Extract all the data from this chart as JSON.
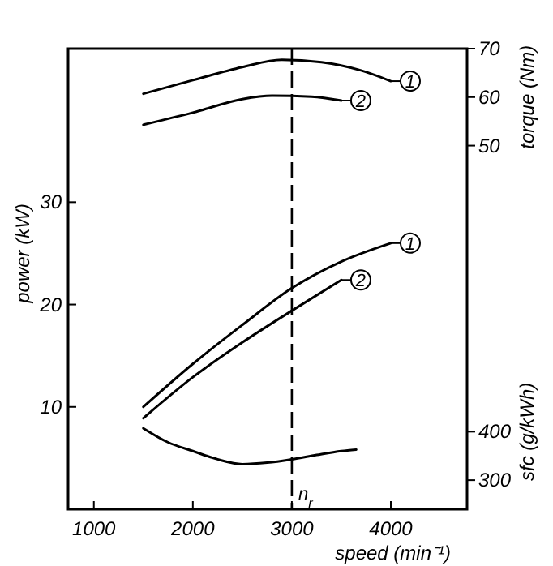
{
  "chart_data": {
    "type": "line",
    "xlabel": "speed (min⁻¹)",
    "ylabel": "power (kW)",
    "y2label": "torque (Nm)",
    "y3label": "sfc (g/kWh)",
    "xlim": [
      740,
      4770
    ],
    "xticks": [
      1000,
      2000,
      3000,
      4000
    ],
    "ylim": [
      0,
      45
    ],
    "yticks": [
      10,
      20,
      30
    ],
    "y2lim": [
      -25,
      70
    ],
    "y2ticks": [
      50,
      60,
      70
    ],
    "y3lim": [
      240,
      1190
    ],
    "y3ticks": [
      300,
      400
    ],
    "grid": false,
    "legend": "right",
    "marker": "none",
    "line_style": "solid",
    "ref_lines": [
      {
        "axis": "x",
        "value": 3000,
        "label": "n$_{r}$",
        "line_style": "dashed",
        "color": "#000000"
      }
    ],
    "series": [
      {
        "name": "1",
        "color": "#000000",
        "axis": "y2",
        "x": [
          1500,
          2000,
          2500,
          2900,
          3300,
          3700,
          4000
        ],
        "values": [
          60.7,
          63.5,
          66.2,
          67.7,
          67.2,
          65.5,
          63.3
        ]
      },
      {
        "name": "2",
        "color": "#000000",
        "axis": "y2",
        "x": [
          1500,
          2000,
          2500,
          2800,
          3200,
          3500
        ],
        "values": [
          54.3,
          56.8,
          59.6,
          60.3,
          60.1,
          59.3
        ]
      },
      {
        "name": "1",
        "color": "#000000",
        "axis": "y",
        "x": [
          1500,
          2000,
          2500,
          3000,
          3500,
          4000
        ],
        "values": [
          10.0,
          14.2,
          18.0,
          21.6,
          24.2,
          26.0
        ]
      },
      {
        "name": "2",
        "color": "#000000",
        "axis": "y",
        "x": [
          1500,
          2000,
          2500,
          3000,
          3500
        ],
        "values": [
          8.9,
          12.9,
          16.3,
          19.4,
          22.4
        ]
      },
      {
        "color": "#000000",
        "axis": "y3",
        "x": [
          1500,
          1750,
          2000,
          2250,
          2500,
          2750,
          3000,
          3250,
          3500,
          3650
        ],
        "values": [
          407,
          378,
          360,
          343,
          333,
          336,
          343,
          352,
          360,
          363
        ]
      }
    ]
  }
}
